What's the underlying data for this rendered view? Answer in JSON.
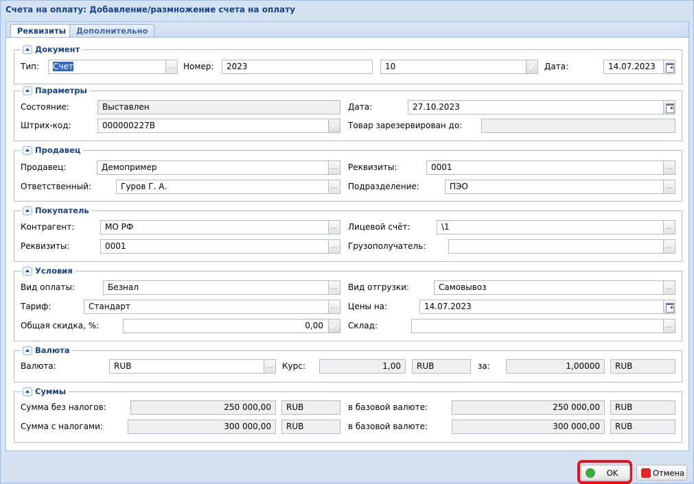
{
  "window": {
    "title": "Счета на оплату: Добавление/размножение счета на оплату"
  },
  "tabs": [
    {
      "label": "Реквизиты",
      "active": true
    },
    {
      "label": "Дополнительно",
      "active": false
    }
  ],
  "document": {
    "legend": "Документ",
    "type_label": "Тип:",
    "type_value": "Счет",
    "number_label": "Номер:",
    "number_value": "2023",
    "suffix_value": "10",
    "date_label": "Дата:",
    "date_value": "14.07.2023"
  },
  "params": {
    "legend": "Параметры",
    "state_label": "Состояние:",
    "state_value": "Выставлен",
    "date_label": "Дата:",
    "date_value": "27.10.2023",
    "barcode_label": "Штрих-код:",
    "barcode_value": "000000227В",
    "reserved_label": "Товар зарезервирован до:",
    "reserved_value": ""
  },
  "seller": {
    "legend": "Продавец",
    "seller_label": "Продавец:",
    "seller_value": "Демопример",
    "req_label": "Реквизиты:",
    "req_value": "0001",
    "resp_label": "Ответственный:",
    "resp_value": "Гуров Г. А.",
    "dept_label": "Подразделение:",
    "dept_value": "ПЭО"
  },
  "buyer": {
    "legend": "Покупатель",
    "contr_label": "Контрагент:",
    "contr_value": "МО РФ",
    "account_label": "Лицевой счёт:",
    "account_value": "\\1",
    "req_label": "Реквизиты:",
    "req_value": "0001",
    "consignee_label": "Грузополучатель:",
    "consignee_value": ""
  },
  "terms": {
    "legend": "Условия",
    "pay_label": "Вид оплаты:",
    "pay_value": "Безнал",
    "ship_label": "Вид отгрузки:",
    "ship_value": "Самовывоз",
    "tariff_label": "Тариф:",
    "tariff_value": "Стандарт",
    "prices_label": "Цены на:",
    "prices_value": "14.07.2023",
    "discount_label": "Общая скидка, %:",
    "discount_value": "0,00",
    "warehouse_label": "Склад:",
    "warehouse_value": ""
  },
  "currency": {
    "legend": "Валюта",
    "cur_label": "Валюта:",
    "cur_value": "RUB",
    "rate_label": "Курс:",
    "rate_value": "1,00",
    "rate_cur": "RUB",
    "per_label": "за:",
    "per_value": "1,00000",
    "per_cur": "RUB"
  },
  "sums": {
    "legend": "Суммы",
    "net_label": "Сумма без налогов:",
    "net_value": "250 000,00",
    "net_cur": "RUB",
    "net_base_label": "в базовой валюте:",
    "net_base_value": "250 000,00",
    "net_base_cur": "RUB",
    "gross_label": "Сумма с налогами:",
    "gross_value": "300 000,00",
    "gross_cur": "RUB",
    "gross_base_label": "в базовой валюте:",
    "gross_base_value": "300 000,00",
    "gross_base_cur": "RUB"
  },
  "buttons": {
    "ok": "OK",
    "cancel": "Отмена"
  },
  "colors": {
    "ok_icon": "#3fa83c",
    "cancel_icon": "#e0262b",
    "highlight": "#e8101a"
  }
}
